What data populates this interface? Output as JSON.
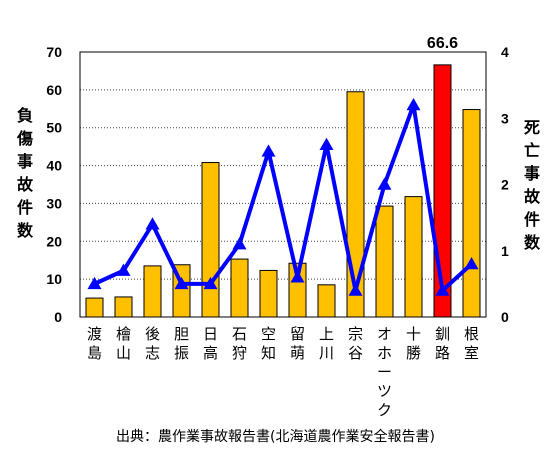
{
  "chart_data": {
    "type": "bar",
    "categories": [
      [
        "渡",
        "島"
      ],
      [
        "檜",
        "山"
      ],
      [
        "後",
        "志"
      ],
      [
        "胆",
        "振"
      ],
      [
        "日",
        "高"
      ],
      [
        "石",
        "狩"
      ],
      [
        "空",
        "知"
      ],
      [
        "留",
        "萌"
      ],
      [
        "上",
        "川"
      ],
      [
        "宗",
        "谷"
      ],
      [
        "オ",
        "ホ",
        "ー",
        "ツ",
        "ク"
      ],
      [
        "十",
        "勝"
      ],
      [
        "釧",
        "路"
      ],
      [
        "根",
        "室"
      ]
    ],
    "series": [
      {
        "type": "bar",
        "axis": "left",
        "values": [
          5,
          5.3,
          13.5,
          13.8,
          40.8,
          15.3,
          12.3,
          14.2,
          8.5,
          59.5,
          29.3,
          31.8,
          66.6,
          54.8
        ],
        "color": "#FFC000",
        "highlight_index": 12,
        "highlight_color": "#FF0000"
      },
      {
        "type": "line",
        "axis": "right",
        "values": [
          0.5,
          0.7,
          1.4,
          0.5,
          0.5,
          1.1,
          2.5,
          0.6,
          2.6,
          0.4,
          2.0,
          3.2,
          0.4,
          0.8
        ],
        "color": "#0000FF"
      }
    ],
    "ylabel_left": [
      "負",
      "傷",
      "事",
      "故",
      "件",
      "数"
    ],
    "ylabel_right": [
      "死",
      "亡",
      "事",
      "故",
      "件",
      "数"
    ],
    "ylim_left": [
      0,
      70
    ],
    "yticks_left": [
      "0",
      "10",
      "20",
      "30",
      "40",
      "50",
      "60",
      "70"
    ],
    "ylim_right": [
      0,
      4
    ],
    "yticks_right": [
      "0",
      "1",
      "2",
      "3",
      "4"
    ],
    "annotations": [
      {
        "index": 12,
        "text": "66.6"
      }
    ]
  },
  "source": "出典：農作業事故報告書(北海道農作業安全報告書)"
}
